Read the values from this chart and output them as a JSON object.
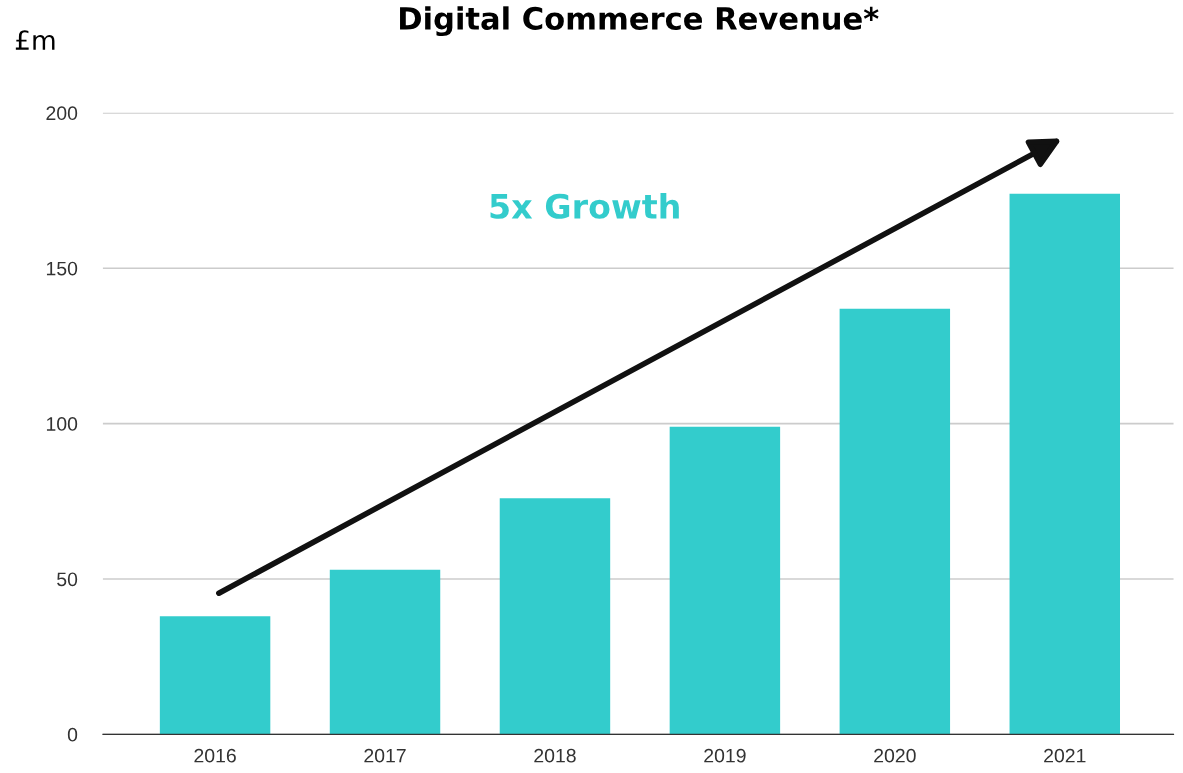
{
  "chart_data": {
    "type": "bar",
    "title": "Digital Commerce Revenue*",
    "ylabel": "£m",
    "categories": [
      "2016",
      "2017",
      "2018",
      "2019",
      "2020",
      "2021"
    ],
    "values": [
      38,
      53,
      76,
      99,
      137,
      174
    ],
    "color": "#33cccc",
    "ylim": [
      0,
      200
    ],
    "yticks": [
      0,
      50,
      100,
      150,
      200
    ],
    "grid": "y",
    "annotations": [
      "5x Growth"
    ]
  }
}
